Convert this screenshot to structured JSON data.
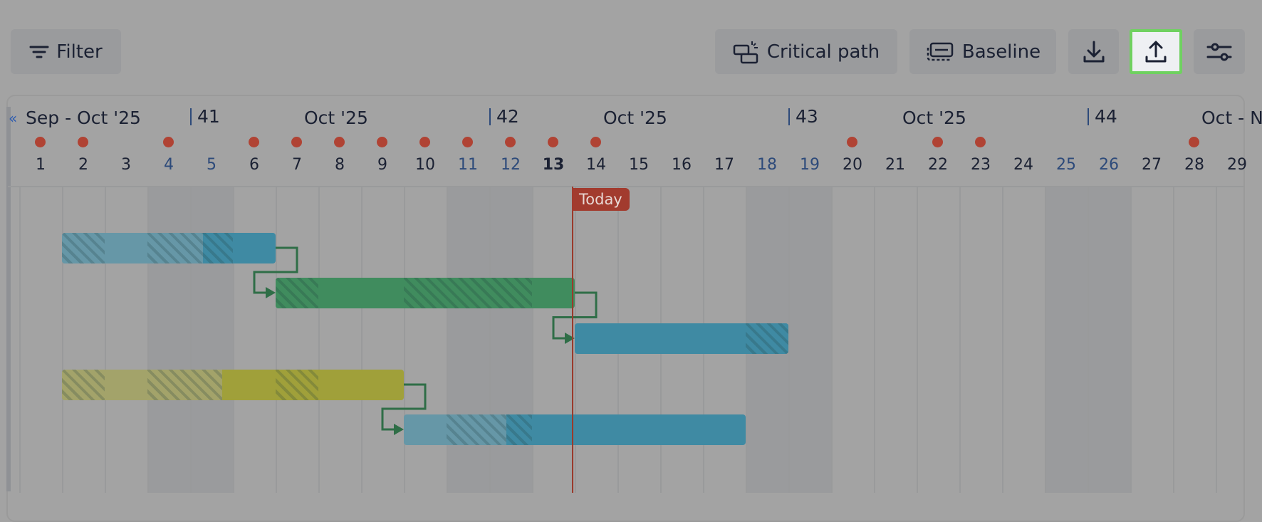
{
  "toolbar": {
    "filter_label": "Filter",
    "critical_path_label": "Critical path",
    "baseline_label": "Baseline",
    "download_icon": "download-icon",
    "upload_icon": "upload-icon",
    "settings_icon": "sliders-icon",
    "highlighted_button": "upload"
  },
  "timeline": {
    "months": [
      {
        "label": "Sep - Oct '25",
        "day": 1
      },
      {
        "label": "Oct '25",
        "day": 5
      },
      {
        "label": "Oct '25",
        "day": 12
      },
      {
        "label": "Oct '25",
        "day": 19
      },
      {
        "label": "Oct - No",
        "day": 26
      }
    ],
    "weeks": [
      {
        "label": "41",
        "day": 5
      },
      {
        "label": "42",
        "day": 12
      },
      {
        "label": "43",
        "day": 19
      },
      {
        "label": "44",
        "day": 26
      }
    ],
    "days": [
      "1",
      "2",
      "3",
      "4",
      "5",
      "6",
      "7",
      "8",
      "9",
      "10",
      "11",
      "12",
      "13",
      "14",
      "15",
      "16",
      "17",
      "18",
      "19",
      "20",
      "21",
      "22",
      "23",
      "24",
      "25",
      "26",
      "27",
      "28",
      "29"
    ],
    "weekend_days": [
      4,
      5,
      11,
      12,
      18,
      19,
      25,
      26
    ],
    "current_day": 13,
    "marker_days": [
      1,
      2,
      4,
      6,
      7,
      8,
      9,
      10,
      11,
      12,
      13,
      14,
      20,
      22,
      23,
      28
    ],
    "today_label": "Today"
  },
  "colors": {
    "blue": "#3f8aa3",
    "blue_light": "#6697a7",
    "green": "#408c5e",
    "green_light": "#5f9a74",
    "olive": "#a0a03a",
    "olive_light": "#a3a36a",
    "dependency": "#2f6e47",
    "marker": "#b04334",
    "today": "#a23b2e"
  },
  "tasks": [
    {
      "color": "blue",
      "start": 2,
      "end": 7,
      "segments": [
        [
          2,
          3,
          "hatch-light"
        ],
        [
          3,
          4,
          "light"
        ],
        [
          4,
          5.3,
          "hatch-light"
        ],
        [
          5.3,
          6,
          "hatch"
        ],
        [
          6,
          7,
          "solid"
        ]
      ]
    },
    {
      "color": "green",
      "start": 7,
      "end": 14,
      "segments": [
        [
          7,
          8,
          "hatch"
        ],
        [
          8,
          10,
          "solid"
        ],
        [
          10,
          13,
          "hatch"
        ],
        [
          13,
          14,
          "solid"
        ]
      ]
    },
    {
      "color": "blue",
      "start": 14,
      "end": 19,
      "segments": [
        [
          14,
          18,
          "solid"
        ],
        [
          18,
          19,
          "hatch"
        ]
      ]
    },
    {
      "color": "olive",
      "start": 2,
      "end": 10,
      "segments": [
        [
          2,
          3,
          "hatch-light"
        ],
        [
          3,
          4,
          "light"
        ],
        [
          4,
          5.75,
          "hatch-light"
        ],
        [
          5.75,
          7,
          "solid"
        ],
        [
          7,
          8,
          "hatch"
        ],
        [
          8,
          10,
          "solid"
        ]
      ]
    },
    {
      "color": "blue",
      "start": 10,
      "end": 18,
      "segments": [
        [
          10,
          11,
          "light"
        ],
        [
          11,
          12.4,
          "hatch-light"
        ],
        [
          12.4,
          13,
          "hatch"
        ],
        [
          13,
          18,
          "solid"
        ]
      ]
    }
  ],
  "dependencies": [
    [
      0,
      1
    ],
    [
      1,
      2
    ],
    [
      3,
      4
    ]
  ]
}
